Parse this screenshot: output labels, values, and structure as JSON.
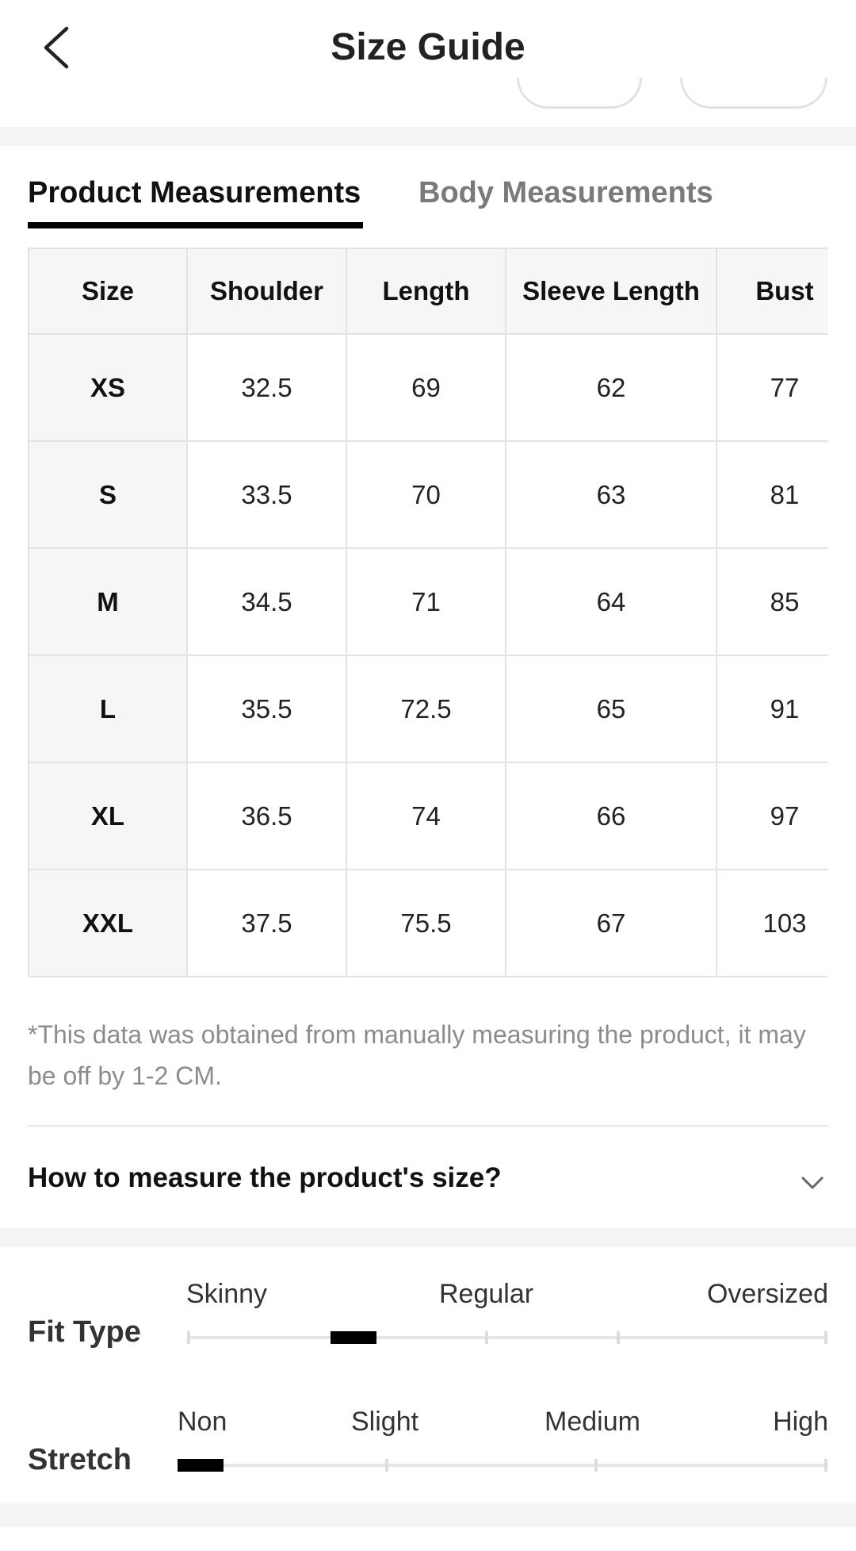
{
  "header": {
    "title": "Size Guide",
    "back_icon": "chevron-left-icon"
  },
  "tabs": [
    {
      "label": "Product Measurements",
      "active": true
    },
    {
      "label": "Body Measurements",
      "active": false
    }
  ],
  "table": {
    "columns": [
      "Size",
      "Shoulder",
      "Length",
      "Sleeve Length",
      "Bust"
    ],
    "rows": [
      [
        "XS",
        "32.5",
        "69",
        "62",
        "77"
      ],
      [
        "S",
        "33.5",
        "70",
        "63",
        "81"
      ],
      [
        "M",
        "34.5",
        "71",
        "64",
        "85"
      ],
      [
        "L",
        "35.5",
        "72.5",
        "65",
        "91"
      ],
      [
        "XL",
        "36.5",
        "74",
        "66",
        "97"
      ],
      [
        "XXL",
        "37.5",
        "75.5",
        "67",
        "103"
      ]
    ]
  },
  "note": "*This data was obtained from manually measuring the product, it may be off by 1-2 CM.",
  "how_to_measure": {
    "label": "How to measure the product's size?",
    "icon": "chevron-down-icon"
  },
  "fit_type": {
    "label": "Fit Type",
    "scale": [
      "Skinny",
      "Regular",
      "Oversized"
    ],
    "level": 0.25
  },
  "stretch": {
    "label": "Stretch",
    "scale": [
      "Non",
      "Slight",
      "Medium",
      "High"
    ],
    "level": 0
  },
  "colors": {
    "accent": "#000000",
    "muted": "#7a7a7a",
    "band": "#f4f4f4",
    "border": "#e3e3e3"
  }
}
